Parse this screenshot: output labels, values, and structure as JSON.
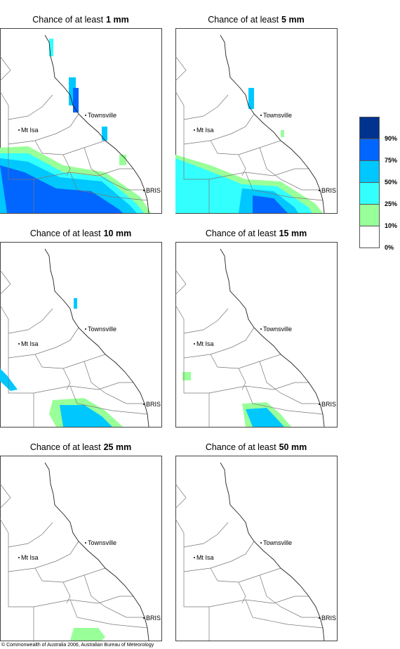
{
  "panels": [
    {
      "prefix": "Chance of at least",
      "amount": "1 mm"
    },
    {
      "prefix": "Chance of at least",
      "amount": "5 mm"
    },
    {
      "prefix": "Chance of at least",
      "amount": "10 mm"
    },
    {
      "prefix": "Chance of at least",
      "amount": "15 mm"
    },
    {
      "prefix": "Chance of at least",
      "amount": "25 mm"
    },
    {
      "prefix": "Chance of at least",
      "amount": "50 mm"
    }
  ],
  "places": {
    "townsville": "Townsville",
    "mt_isa": "Mt Isa",
    "brisbane": "BRIS"
  },
  "legend": [
    {
      "label": "90%",
      "color": "#00338f"
    },
    {
      "label": "75%",
      "color": "#0066ff"
    },
    {
      "label": "50%",
      "color": "#00c8ff"
    },
    {
      "label": "25%",
      "color": "#33ffff"
    },
    {
      "label": "10%",
      "color": "#99ff99"
    },
    {
      "label": "0%",
      "color": "#ffffff"
    }
  ],
  "copyright": "© Commonwealth of Australia 2006, Australian Bureau of Meteorology"
}
